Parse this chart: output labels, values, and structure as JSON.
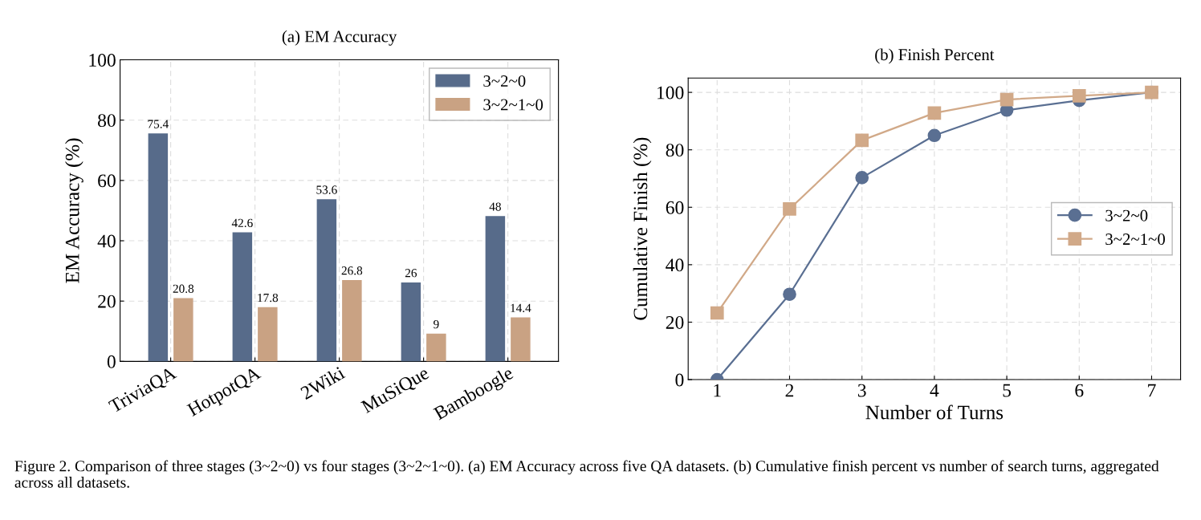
{
  "chart_data": [
    {
      "type": "bar",
      "title": "(a) EM Accuracy",
      "ylabel": "EM Accuracy (%)",
      "categories": [
        "TriviaQA",
        "HotpotQA",
        "2Wiki",
        "MuSiQue",
        "Bamboogle"
      ],
      "series": [
        {
          "name": "3~2~0",
          "color": "#576b8a",
          "values": [
            75.4,
            42.6,
            53.6,
            26,
            48
          ]
        },
        {
          "name": "3~2~1~0",
          "color": "#c9a283",
          "values": [
            20.8,
            17.8,
            26.8,
            9,
            14.4
          ]
        }
      ],
      "ylim": [
        0,
        100
      ],
      "yticks": [
        0,
        20,
        40,
        60,
        80,
        100
      ],
      "grid": true,
      "legend": "top right",
      "data_labels": true,
      "annotations": [
        "Figure 2. Comparison of three stages (3~2~0) vs four stages (3~2~1~0). (a) EM Accuracy across five QA datasets. (b) Cumulative finish percent vs number of search turns, aggregated across all datasets."
      ]
    },
    {
      "type": "line",
      "title": "(b) Finish Percent",
      "xlabel": "Number of Turns",
      "ylabel": "Cumulative Finish (%)",
      "x": [
        1,
        2,
        3,
        4,
        5,
        6,
        7
      ],
      "series": [
        {
          "name": "3~2~0",
          "color": "#5a6f92",
          "marker": "circle",
          "values": [
            0,
            29.7,
            70.3,
            85,
            93.8,
            97.2,
            100
          ]
        },
        {
          "name": "3~2~1~0",
          "color": "#d1a988",
          "marker": "square",
          "values": [
            23.2,
            59.4,
            83.3,
            92.8,
            97.5,
            98.8,
            100
          ]
        }
      ],
      "xlim": [
        0.6,
        7.4
      ],
      "xticks": [
        1,
        2,
        3,
        4,
        5,
        6,
        7
      ],
      "ylim": [
        0,
        105
      ],
      "yticks": [
        0,
        20,
        40,
        60,
        80,
        100
      ],
      "grid": true,
      "legend": "right",
      "line_style": "solid"
    }
  ]
}
